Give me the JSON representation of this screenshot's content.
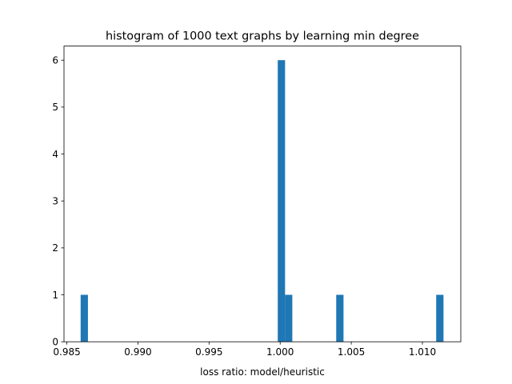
{
  "chart_data": {
    "type": "bar",
    "title": "histogram of 1000 text graphs by learning min degree",
    "xlabel": "loss ratio: model/heuristic",
    "ylabel": "",
    "xlim": [
      0.9848,
      1.0127
    ],
    "ylim": [
      0,
      6.3
    ],
    "xticks": [
      0.985,
      0.99,
      0.995,
      1.0,
      1.005,
      1.01
    ],
    "xtick_labels": [
      "0.985",
      "0.990",
      "0.995",
      "1.000",
      "1.005",
      "1.010"
    ],
    "yticks": [
      0,
      1,
      2,
      3,
      4,
      5,
      6
    ],
    "ytick_labels": [
      "0",
      "1",
      "2",
      "3",
      "4",
      "5",
      "6"
    ],
    "bin_width": 0.000513,
    "bins": [
      {
        "x0": 0.98597,
        "count": 1
      },
      {
        "x0": 0.99983,
        "count": 6
      },
      {
        "x0": 1.00034,
        "count": 1
      },
      {
        "x0": 1.00394,
        "count": 1
      },
      {
        "x0": 1.01097,
        "count": 1
      }
    ],
    "bar_color": "#1f77b4",
    "grid": false,
    "legend": "none"
  }
}
